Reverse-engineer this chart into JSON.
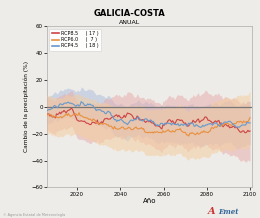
{
  "title": "GALICIA-COSTA",
  "subtitle": "ANUAL",
  "xlabel": "Año",
  "ylabel": "Cambio de la precipitación (%)",
  "xlim": [
    2006,
    2101
  ],
  "ylim": [
    -60,
    60
  ],
  "yticks": [
    -60,
    -40,
    -20,
    0,
    20,
    40,
    60
  ],
  "xticks": [
    2020,
    2040,
    2060,
    2080,
    2100
  ],
  "legend_entries": [
    {
      "label": "RCP8.5",
      "count": "( 17 )",
      "color": "#cc4444"
    },
    {
      "label": "RCP6.0",
      "count": "(  7 )",
      "color": "#e89040"
    },
    {
      "label": "RCP4.5",
      "count": "( 18 )",
      "color": "#6699cc"
    }
  ],
  "rcp85_color": "#cc4444",
  "rcp60_color": "#e89040",
  "rcp45_color": "#6699cc",
  "rcp85_fill": "#e8aaaa",
  "rcp60_fill": "#f5cc99",
  "rcp45_fill": "#aabbdd",
  "bg_color": "#eeece8",
  "hline_color": "#777777",
  "footer_text": "© Agencia Estatal de Meteorología",
  "seed": 12
}
